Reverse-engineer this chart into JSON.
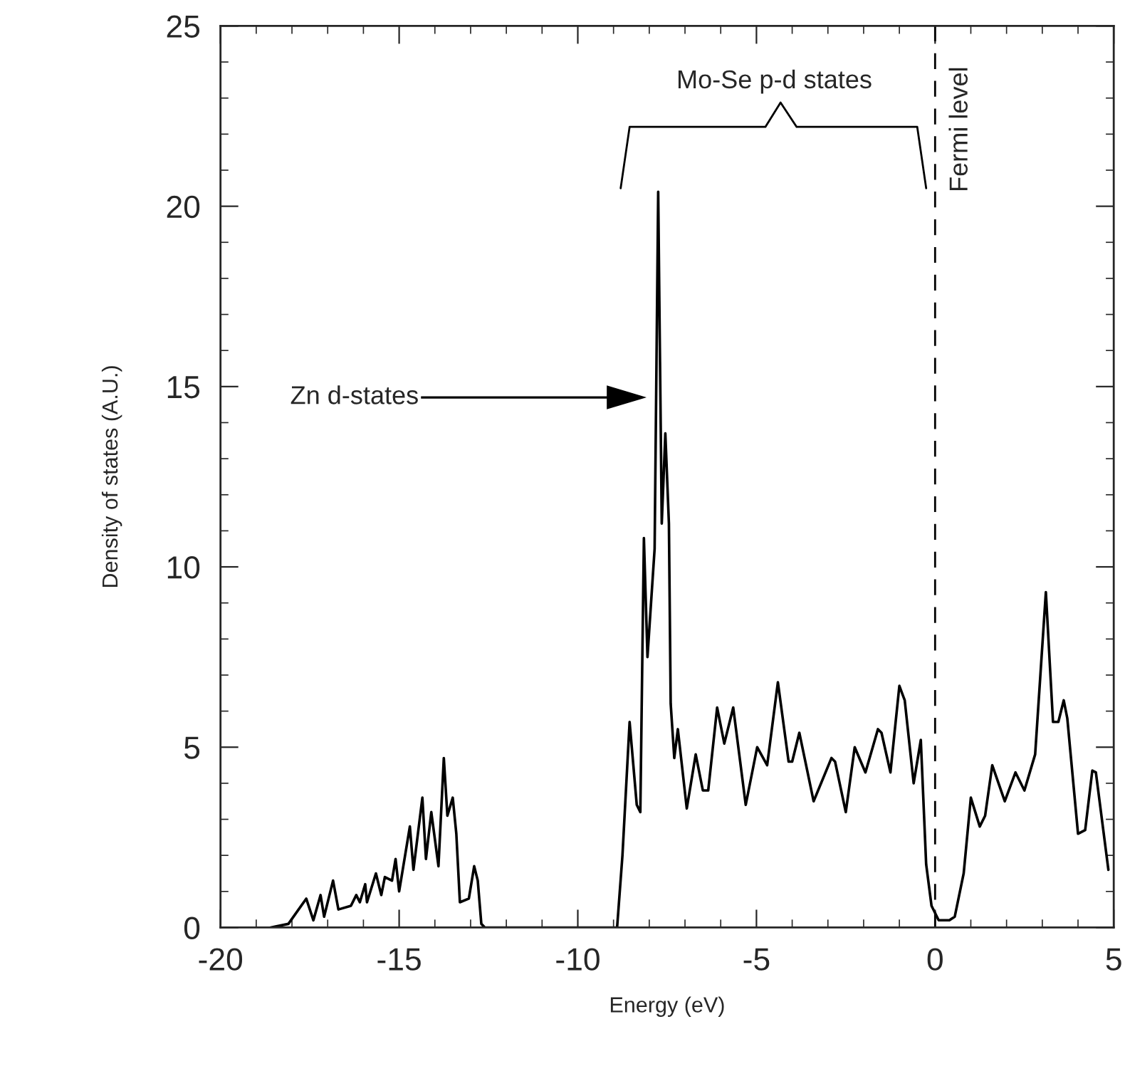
{
  "chart_data": {
    "type": "line",
    "xlabel": "Energy (eV)",
    "ylabel": "Density of states (A.U.)",
    "xlim": [
      -20,
      5
    ],
    "xticks": [
      -20,
      -15,
      -10,
      -5,
      0,
      5
    ],
    "ylim": [
      0,
      25
    ],
    "yticks": [
      0,
      5,
      10,
      15,
      20,
      25
    ],
    "grid": false,
    "marker": "none",
    "line_style": "solid",
    "series": [
      {
        "color": "#000000",
        "x": [
          -18.6,
          -18.1,
          -17.6,
          -17.4,
          -17.2,
          -17.1,
          -16.85,
          -16.7,
          -16.35,
          -16.2,
          -16.1,
          -15.95,
          -15.9,
          -15.65,
          -15.5,
          -15.4,
          -15.2,
          -15.1,
          -15.0,
          -14.7,
          -14.6,
          -14.35,
          -14.25,
          -14.1,
          -13.9,
          -13.75,
          -13.65,
          -13.5,
          -13.4,
          -13.3,
          -13.05,
          -12.9,
          -12.8,
          -12.7,
          -12.6,
          -8.9,
          -8.75,
          -8.55,
          -8.35,
          -8.25,
          -8.15,
          -8.05,
          -7.85,
          -7.75,
          -7.65,
          -7.55,
          -7.45,
          -7.4,
          -7.3,
          -7.2,
          -6.95,
          -6.7,
          -6.5,
          -6.35,
          -6.1,
          -5.9,
          -5.65,
          -5.3,
          -4.98,
          -4.7,
          -4.4,
          -4.1,
          -4.0,
          -3.8,
          -3.4,
          -2.9,
          -2.8,
          -2.5,
          -2.25,
          -1.95,
          -1.6,
          -1.5,
          -1.25,
          -1.0,
          -0.85,
          -0.6,
          -0.4,
          -0.25,
          -0.1,
          0.1,
          0.4,
          0.55,
          0.8,
          1.0,
          1.25,
          1.4,
          1.6,
          1.95,
          2.25,
          2.5,
          2.8,
          3.1,
          3.3,
          3.45,
          3.6,
          3.7,
          4.0,
          4.2,
          4.4,
          4.5,
          4.85
        ],
        "values": [
          0,
          0.1,
          0.8,
          0.2,
          0.9,
          0.3,
          1.3,
          0.5,
          0.6,
          0.9,
          0.7,
          1.2,
          0.7,
          1.5,
          0.9,
          1.4,
          1.3,
          1.9,
          1.0,
          2.8,
          1.6,
          3.6,
          1.9,
          3.2,
          1.7,
          4.7,
          3.1,
          3.6,
          2.6,
          0.7,
          0.8,
          1.7,
          1.3,
          0.1,
          0,
          0,
          2.0,
          5.7,
          3.4,
          3.2,
          10.8,
          7.5,
          10.5,
          20.4,
          11.2,
          13.7,
          11.2,
          6.2,
          4.7,
          5.5,
          3.3,
          4.8,
          3.8,
          3.8,
          6.1,
          5.1,
          6.1,
          3.4,
          5.0,
          4.5,
          6.8,
          4.6,
          4.6,
          5.4,
          3.5,
          4.7,
          4.6,
          3.2,
          5.0,
          4.3,
          5.5,
          5.4,
          4.3,
          6.7,
          6.3,
          4.0,
          5.2,
          1.75,
          0.6,
          0.2,
          0.2,
          0.3,
          1.5,
          3.6,
          2.8,
          3.1,
          4.5,
          3.5,
          4.3,
          3.8,
          4.8,
          9.3,
          5.7,
          5.7,
          6.3,
          5.8,
          2.6,
          2.7,
          4.35,
          4.3,
          1.6
        ]
      }
    ],
    "ref_lines": [
      {
        "axis": "x",
        "value": 0,
        "label": "Fermi level",
        "line_style": "dashed",
        "color": "#000000"
      }
    ],
    "annotations": [
      "Zn d-states",
      "Mo-Se p-d states"
    ]
  }
}
